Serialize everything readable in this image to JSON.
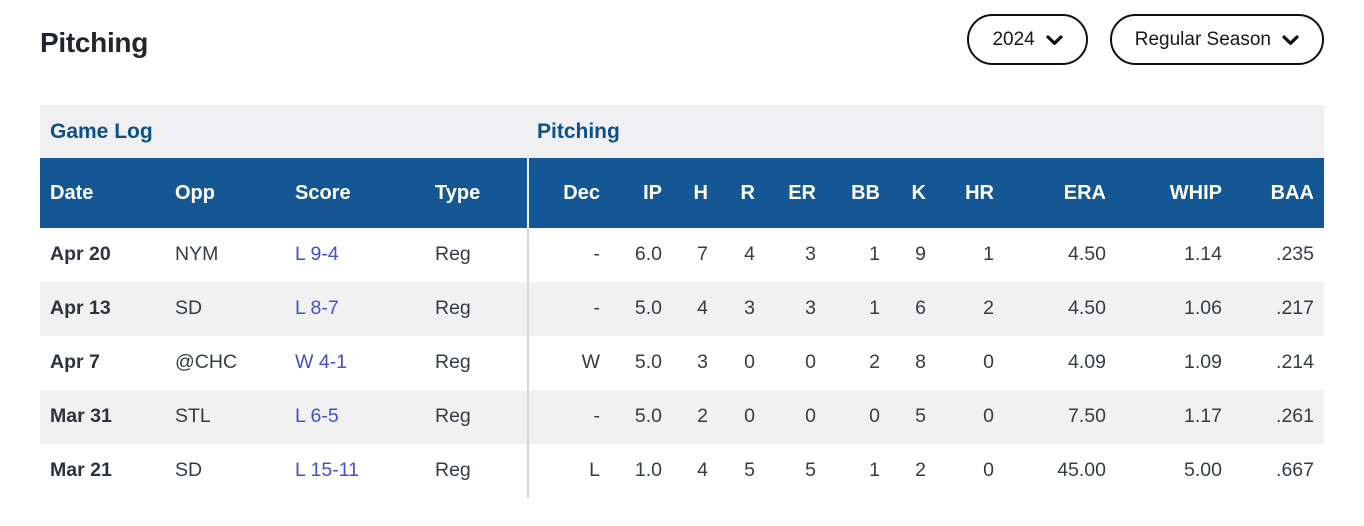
{
  "page": {
    "title": "Pitching"
  },
  "filters": {
    "season": "2024",
    "season_type": "Regular Season"
  },
  "icons": {
    "season_dropdown": "chevron-down-icon",
    "season_type_dropdown": "chevron-down-icon"
  },
  "table": {
    "section_left": "Game Log",
    "section_right": "Pitching",
    "columns": [
      {
        "key": "date",
        "label": "Date"
      },
      {
        "key": "opp",
        "label": "Opp"
      },
      {
        "key": "score",
        "label": "Score"
      },
      {
        "key": "type",
        "label": "Type"
      },
      {
        "key": "dec",
        "label": "Dec"
      },
      {
        "key": "ip",
        "label": "IP"
      },
      {
        "key": "h",
        "label": "H"
      },
      {
        "key": "r",
        "label": "R"
      },
      {
        "key": "er",
        "label": "ER"
      },
      {
        "key": "bb",
        "label": "BB"
      },
      {
        "key": "k",
        "label": "K"
      },
      {
        "key": "hr",
        "label": "HR"
      },
      {
        "key": "era",
        "label": "ERA"
      },
      {
        "key": "whip",
        "label": "WHIP"
      },
      {
        "key": "baa",
        "label": "BAA"
      }
    ],
    "rows": [
      {
        "cells": [
          "Apr 20",
          "NYM",
          "L 9-4",
          "Reg",
          "-",
          "6.0",
          "7",
          "4",
          "3",
          "1",
          "9",
          "1",
          "4.50",
          "1.14",
          ".235"
        ]
      },
      {
        "cells": [
          "Apr 13",
          "SD",
          "L 8-7",
          "Reg",
          "-",
          "5.0",
          "4",
          "3",
          "3",
          "1",
          "6",
          "2",
          "4.50",
          "1.06",
          ".217"
        ]
      },
      {
        "cells": [
          "Apr 7",
          "@CHC",
          "W 4-1",
          "Reg",
          "W",
          "5.0",
          "3",
          "0",
          "0",
          "2",
          "8",
          "0",
          "4.09",
          "1.09",
          ".214"
        ]
      },
      {
        "cells": [
          "Mar 31",
          "STL",
          "L 6-5",
          "Reg",
          "-",
          "5.0",
          "2",
          "0",
          "0",
          "0",
          "5",
          "0",
          "7.50",
          "1.17",
          ".261"
        ]
      },
      {
        "cells": [
          "Mar 21",
          "SD",
          "L 15-11",
          "Reg",
          "L",
          "1.0",
          "4",
          "5",
          "5",
          "1",
          "2",
          "0",
          "45.00",
          "5.00",
          ".667"
        ]
      }
    ]
  },
  "colors": {
    "table_header_bg": "#155694",
    "section_title_text": "#0d508c",
    "score_link": "#4150cc",
    "row_alt_bg": "#f1f1f2",
    "section_bar_bg": "#f0f0f2",
    "column_divider": "#d6d6d9",
    "pill_border": "#0f0f0f"
  }
}
